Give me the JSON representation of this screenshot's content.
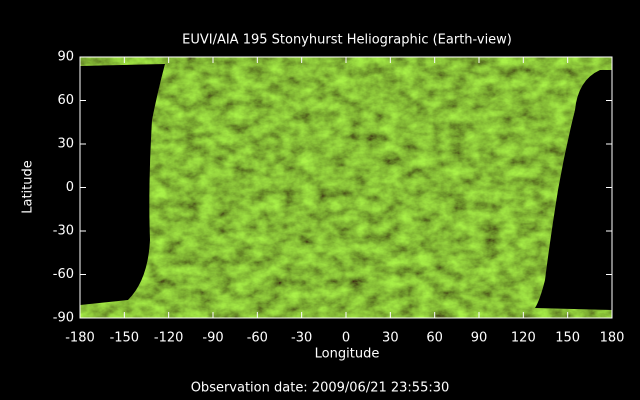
{
  "chart_data": {
    "type": "image",
    "title": "EUVI/AIA 195 Stonyhurst Heliographic (Earth-view)",
    "xlabel": "Longitude",
    "ylabel": "Latitude",
    "xlim": [
      -180,
      180
    ],
    "ylim": [
      -90,
      90
    ],
    "xticks": [
      -180,
      -150,
      -120,
      -90,
      -60,
      -30,
      0,
      30,
      60,
      90,
      120,
      150,
      180
    ],
    "yticks": [
      -90,
      -60,
      -30,
      0,
      30,
      60,
      90
    ],
    "caption": "Observation date: 2009/06/21 23:55:30"
  }
}
